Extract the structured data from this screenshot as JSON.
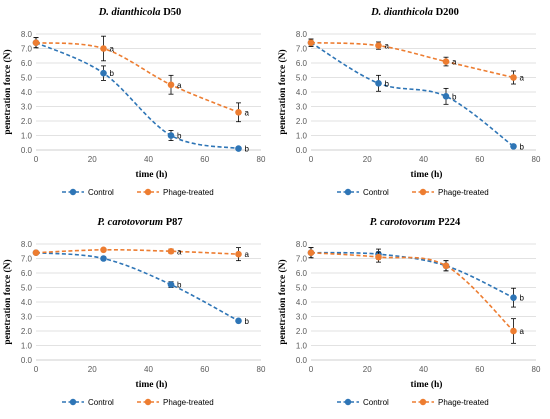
{
  "chart_data": [
    {
      "type": "line",
      "title_italic": "D. dianthicola",
      "title_rest": " D50",
      "xlabel": "time (h)",
      "ylabel": "penetration force (N)",
      "xlim": [
        0,
        80
      ],
      "ylim": [
        0,
        8
      ],
      "xticks": [
        "0",
        "20",
        "40",
        "60",
        "80"
      ],
      "yticks": [
        "0.0",
        "1.0",
        "2.0",
        "3.0",
        "4.0",
        "5.0",
        "6.0",
        "7.0",
        "8.0"
      ],
      "grid": true,
      "legend": "bottom",
      "series": [
        {
          "name": "Control",
          "color": "#2e75b6",
          "x": [
            0,
            24,
            48,
            72
          ],
          "y": [
            7.4,
            5.3,
            1.0,
            0.1
          ],
          "err": [
            0.35,
            0.5,
            0.35,
            0.1
          ],
          "labels": [
            "",
            "b",
            "b",
            "b"
          ]
        },
        {
          "name": "Phage-treated",
          "color": "#ed7d31",
          "x": [
            0,
            24,
            48,
            72
          ],
          "y": [
            7.4,
            7.0,
            4.5,
            2.6
          ],
          "err": [
            0.35,
            0.85,
            0.65,
            0.65
          ],
          "labels": [
            "",
            "a",
            "a",
            "a"
          ]
        }
      ]
    },
    {
      "type": "line",
      "title_italic": "D. dianthicola",
      "title_rest": " D200",
      "xlabel": "time (h)",
      "ylabel": "penetration force (N)",
      "xlim": [
        0,
        80
      ],
      "ylim": [
        0,
        8
      ],
      "xticks": [
        "0",
        "20",
        "40",
        "60",
        "80"
      ],
      "yticks": [
        "0.0",
        "1.0",
        "2.0",
        "3.0",
        "4.0",
        "5.0",
        "6.0",
        "7.0",
        "8.0"
      ],
      "grid": true,
      "legend": "bottom",
      "series": [
        {
          "name": "Control",
          "color": "#2e75b6",
          "x": [
            0,
            24,
            48,
            72
          ],
          "y": [
            7.4,
            4.6,
            3.7,
            0.25
          ],
          "err": [
            0.25,
            0.55,
            0.55,
            0.1
          ],
          "labels": [
            "",
            "b",
            "b",
            "b"
          ]
        },
        {
          "name": "Phage-treated",
          "color": "#ed7d31",
          "x": [
            0,
            24,
            48,
            72
          ],
          "y": [
            7.4,
            7.2,
            6.1,
            5.0
          ],
          "err": [
            0.25,
            0.25,
            0.3,
            0.45
          ],
          "labels": [
            "",
            "a",
            "a",
            "a"
          ]
        }
      ]
    },
    {
      "type": "line",
      "title_italic": "P. carotovorum",
      "title_rest": " P87",
      "xlabel": "time (h)",
      "ylabel": "penetration force (N)",
      "xlim": [
        0,
        80
      ],
      "ylim": [
        0,
        8
      ],
      "xticks": [
        "0",
        "20",
        "40",
        "60",
        "80"
      ],
      "yticks": [
        "0.0",
        "1.0",
        "2.0",
        "3.0",
        "4.0",
        "5.0",
        "6.0",
        "7.0",
        "8.0"
      ],
      "grid": true,
      "legend": "bottom",
      "series": [
        {
          "name": "Control",
          "color": "#2e75b6",
          "x": [
            0,
            24,
            48,
            72
          ],
          "y": [
            7.4,
            7.0,
            5.2,
            2.7
          ],
          "err": [
            0.1,
            0.1,
            0.2,
            0.1
          ],
          "labels": [
            "",
            "",
            "b",
            "b"
          ]
        },
        {
          "name": "Phage-treated",
          "color": "#ed7d31",
          "x": [
            0,
            24,
            48,
            72
          ],
          "y": [
            7.4,
            7.6,
            7.5,
            7.3
          ],
          "err": [
            0.1,
            0.1,
            0.15,
            0.45
          ],
          "labels": [
            "",
            "",
            "a",
            "a"
          ]
        }
      ]
    },
    {
      "type": "line",
      "title_italic": "P. carotovorum",
      "title_rest": " P224",
      "xlabel": "time (h)",
      "ylabel": "penetration force (N)",
      "xlim": [
        0,
        80
      ],
      "ylim": [
        0,
        8
      ],
      "xticks": [
        "0",
        "20",
        "40",
        "60",
        "80"
      ],
      "yticks": [
        "0.0",
        "1.0",
        "2.0",
        "3.0",
        "4.0",
        "5.0",
        "6.0",
        "7.0",
        "8.0"
      ],
      "grid": true,
      "legend": "bottom",
      "series": [
        {
          "name": "Control",
          "color": "#2e75b6",
          "x": [
            0,
            24,
            48,
            72
          ],
          "y": [
            7.4,
            7.3,
            6.5,
            4.3
          ],
          "err": [
            0.35,
            0.35,
            0.35,
            0.65
          ],
          "labels": [
            "",
            "",
            "",
            "b"
          ]
        },
        {
          "name": "Phage-treated",
          "color": "#ed7d31",
          "x": [
            0,
            24,
            48,
            72
          ],
          "y": [
            7.4,
            7.1,
            6.5,
            2.0
          ],
          "err": [
            0.35,
            0.35,
            0.35,
            0.85
          ],
          "labels": [
            "",
            "",
            "",
            "a"
          ]
        }
      ]
    }
  ]
}
